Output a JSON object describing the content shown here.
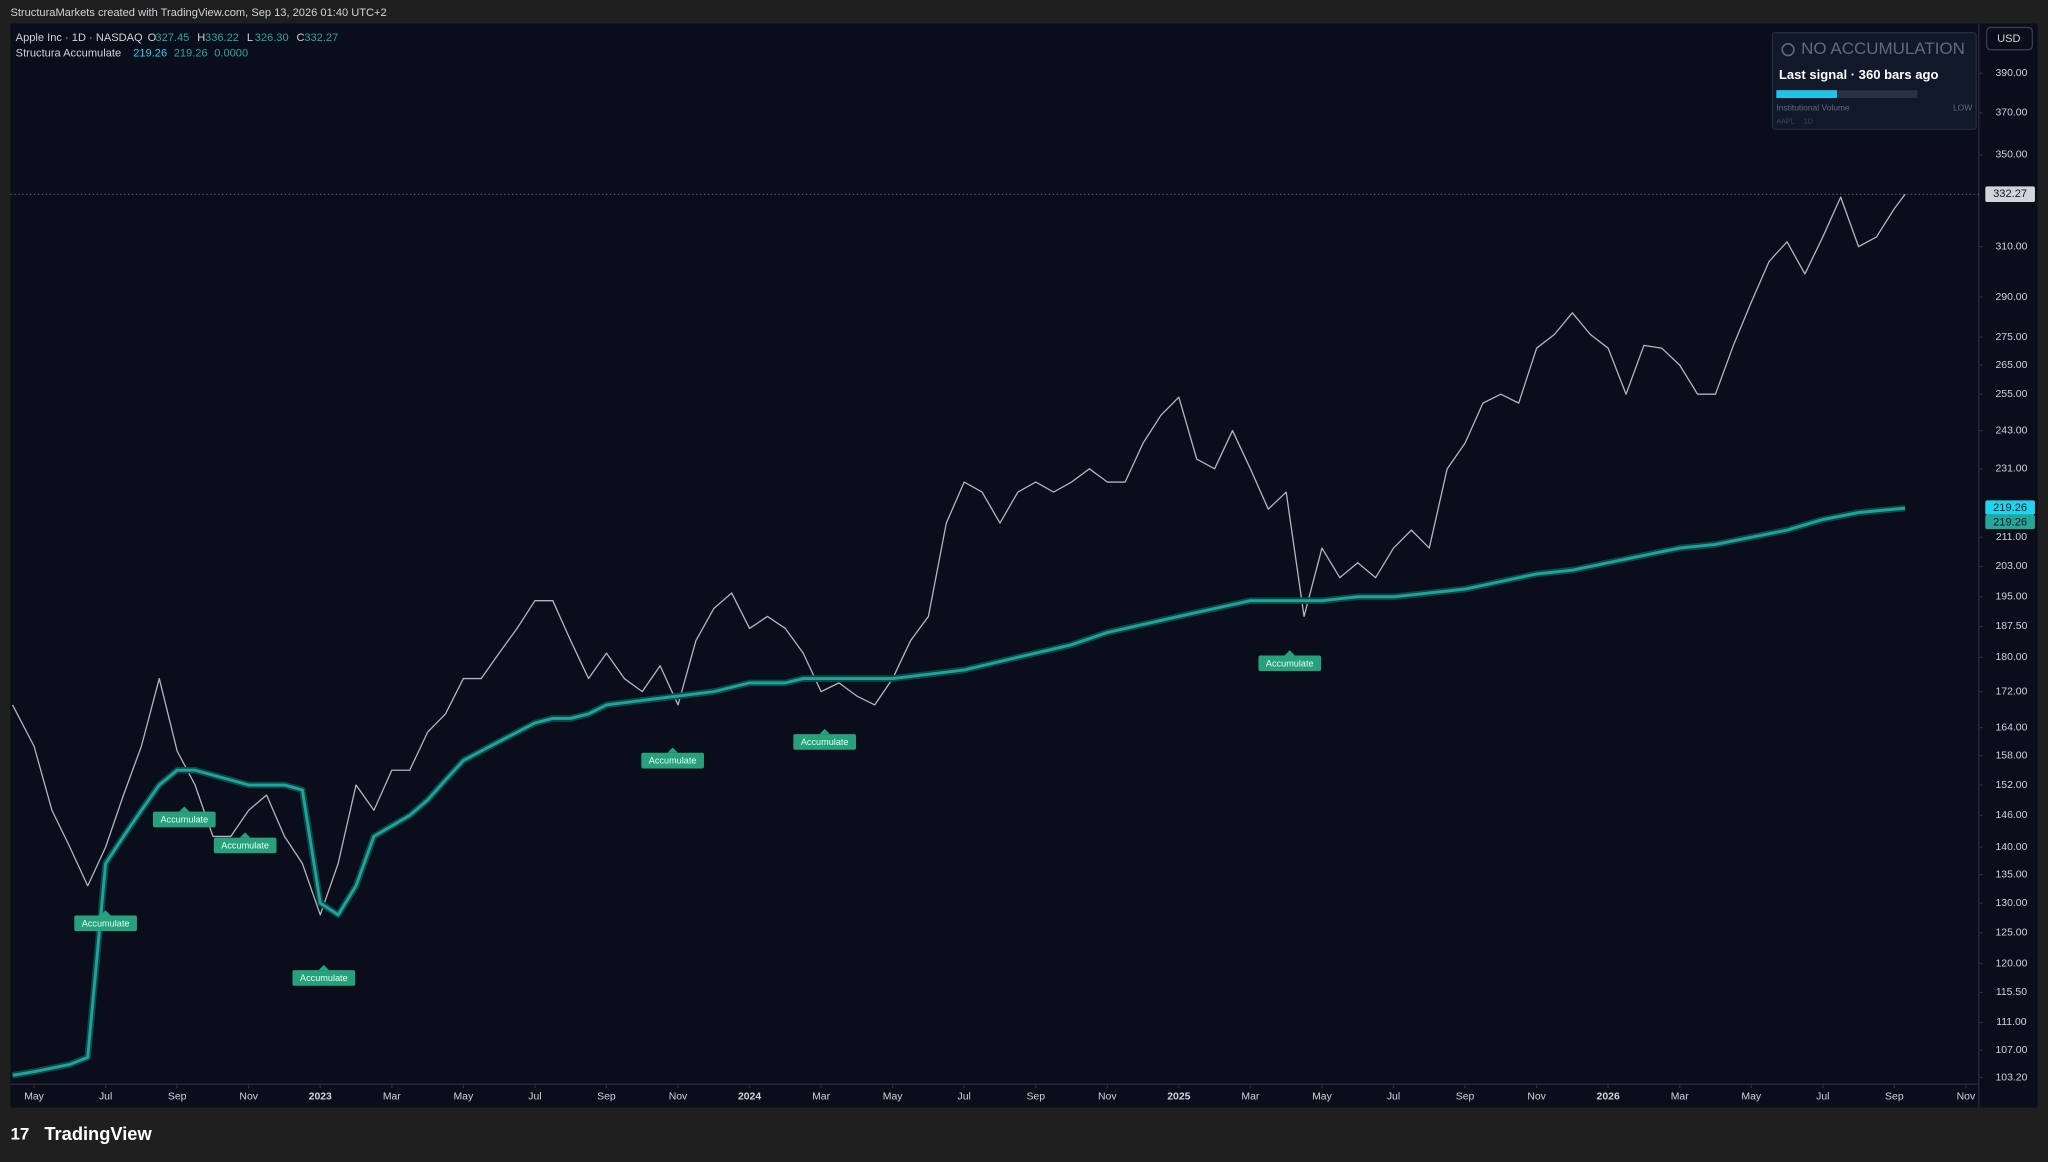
{
  "header": {
    "attribution": "StructuraMarkets created with TradingView.com, Sep 13, 2026 01:40 UTC+2",
    "logo": "TradingView",
    "currency": "USD"
  },
  "panel": {
    "status": "NO ACCUMULATION",
    "last_signal": "Last signal · 360 bars ago",
    "meter_label": "Institutional Volume",
    "meter_level": "LOW",
    "meter_fill": 0.43,
    "symbol": "AAPL",
    "interval": "1D"
  },
  "chart_data": {
    "type": "line",
    "log_scale": true,
    "grid": false,
    "legend_ohlc": [
      {
        "key": "O",
        "text": "327.45"
      },
      {
        "key": "H",
        "text": "336.22"
      },
      {
        "key": "L",
        "text": "326.30"
      },
      {
        "key": "C",
        "text": "332.27"
      }
    ],
    "indicator_values": [
      "219.26",
      "219.26",
      "0.0000"
    ],
    "x": [
      -0.6,
      0,
      0.5,
      1,
      1.5,
      2,
      2.5,
      3,
      3.5,
      4,
      4.5,
      5,
      5.5,
      6,
      6.5,
      7,
      7.5,
      8,
      8.5,
      9,
      9.5,
      10,
      10.5,
      11,
      11.5,
      12,
      12.5,
      13,
      13.5,
      14,
      14.5,
      15,
      15.5,
      16,
      16.5,
      17,
      17.5,
      18,
      18.5,
      19,
      19.5,
      20,
      20.5,
      21,
      21.5,
      22,
      22.5,
      23,
      23.5,
      24,
      24.5,
      25,
      25.5,
      26,
      26.5,
      27,
      27.5,
      28,
      28.5,
      29,
      29.5,
      30,
      30.5,
      31,
      31.5,
      32,
      32.5,
      33,
      33.5,
      34,
      34.5,
      35,
      35.5,
      36,
      36.5,
      37,
      37.5,
      38,
      38.5,
      39,
      39.5,
      40,
      40.5,
      41,
      41.5,
      42,
      42.5,
      43,
      43.5,
      44,
      44.5,
      45,
      45.5,
      46,
      46.5,
      47,
      47.5,
      48,
      48.5,
      49,
      49.5,
      50,
      50.5,
      51,
      51.5,
      52,
      52.3
    ],
    "series": [
      {
        "name": "Apple Inc · 1D · NASDAQ",
        "color": "#b2b5be",
        "values": [
          169,
          160,
          147,
          140,
          133,
          140,
          150,
          160,
          175,
          159,
          152,
          142,
          142,
          147,
          150,
          142,
          137,
          128,
          137,
          152,
          147,
          155,
          155,
          163,
          167,
          175,
          175,
          181,
          187,
          194,
          194,
          184,
          175,
          181,
          175,
          172,
          178,
          169,
          184,
          192,
          196,
          187,
          190,
          187,
          181,
          172,
          174,
          171,
          169,
          175,
          184,
          190,
          215,
          227,
          224,
          215,
          224,
          227,
          224,
          227,
          231,
          227,
          227,
          239,
          248,
          254,
          234,
          231,
          243,
          231,
          219,
          224,
          190,
          208,
          200,
          204,
          200,
          208,
          213,
          208,
          231,
          239,
          252,
          255,
          252,
          271,
          276,
          284,
          276,
          271,
          255,
          272,
          271,
          265,
          255,
          255,
          272,
          288,
          304,
          312,
          299,
          314,
          331,
          310,
          314,
          326,
          332.27
        ]
      },
      {
        "name": "Structura Accumulate",
        "color": "#1fa39a",
        "values": [
          103.5,
          104,
          104.5,
          105,
          106,
          137,
          142,
          147,
          152,
          155,
          155,
          154,
          153,
          152,
          152,
          152,
          151,
          130,
          128,
          133,
          142,
          144,
          146,
          149,
          153,
          157,
          159,
          161,
          163,
          165,
          166,
          166,
          167,
          169,
          169.5,
          170,
          170.5,
          171,
          171.5,
          172,
          173,
          174,
          174,
          174,
          175,
          175,
          175,
          175,
          175,
          175,
          175.5,
          176,
          176.5,
          177,
          178,
          179,
          180,
          181,
          182,
          183,
          184.5,
          186,
          187,
          188,
          189,
          190,
          191,
          192,
          193,
          194,
          194,
          194,
          194,
          194,
          194.5,
          195,
          195,
          195,
          195.5,
          196,
          196.5,
          197,
          198,
          199,
          200,
          201,
          201.5,
          202,
          203,
          204,
          205,
          206,
          207,
          208,
          208.5,
          209,
          210,
          211,
          212,
          213,
          214.5,
          216,
          217,
          218,
          218.5,
          219,
          219.26
        ]
      }
    ],
    "annotations": [
      {
        "text": "Accumulate",
        "x": 2,
        "y": 129
      },
      {
        "text": "Accumulate",
        "x": 4.2,
        "y": 148
      },
      {
        "text": "Accumulate",
        "x": 5.9,
        "y": 143
      },
      {
        "text": "Accumulate",
        "x": 8.1,
        "y": 120
      },
      {
        "text": "Accumulate",
        "x": 17.85,
        "y": 160
      },
      {
        "text": "Accumulate",
        "x": 22.1,
        "y": 164
      },
      {
        "text": "Accumulate",
        "x": 35.1,
        "y": 182
      }
    ],
    "last_price": {
      "value": 332.27,
      "color": "#d1d4dc"
    },
    "indicator_labels": [
      {
        "value": 219.26,
        "color": "#22d3ee"
      },
      {
        "value": 219.26,
        "color": "#26a69a"
      }
    ],
    "xlim": [
      -0.66,
      54.36
    ],
    "xticks": [
      {
        "value": 0,
        "label": "May"
      },
      {
        "value": 2,
        "label": "Jul"
      },
      {
        "value": 4,
        "label": "Sep"
      },
      {
        "value": 6,
        "label": "Nov"
      },
      {
        "value": 8,
        "label": "2023"
      },
      {
        "value": 10,
        "label": "Mar"
      },
      {
        "value": 12,
        "label": "May"
      },
      {
        "value": 14,
        "label": "Jul"
      },
      {
        "value": 16,
        "label": "Sep"
      },
      {
        "value": 18,
        "label": "Nov"
      },
      {
        "value": 20,
        "label": "2024"
      },
      {
        "value": 22,
        "label": "Mar"
      },
      {
        "value": 24,
        "label": "May"
      },
      {
        "value": 26,
        "label": "Jul"
      },
      {
        "value": 28,
        "label": "Sep"
      },
      {
        "value": 30,
        "label": "Nov"
      },
      {
        "value": 32,
        "label": "2025"
      },
      {
        "value": 34,
        "label": "Mar"
      },
      {
        "value": 36,
        "label": "May"
      },
      {
        "value": 38,
        "label": "Jul"
      },
      {
        "value": 40,
        "label": "Sep"
      },
      {
        "value": 42,
        "label": "Nov"
      },
      {
        "value": 44,
        "label": "2026"
      },
      {
        "value": 46,
        "label": "Mar"
      },
      {
        "value": 48,
        "label": "May"
      },
      {
        "value": 50,
        "label": "Jul"
      },
      {
        "value": 52,
        "label": "Sep"
      },
      {
        "value": 54,
        "label": "Nov"
      }
    ],
    "ylim": [
      102.3,
      416.5
    ],
    "yticks": [
      {
        "value": 103.2,
        "label": "103.20"
      },
      {
        "value": 107,
        "label": "107.00"
      },
      {
        "value": 111,
        "label": "111.00"
      },
      {
        "value": 115.5,
        "label": "115.50"
      },
      {
        "value": 120,
        "label": "120.00"
      },
      {
        "value": 125,
        "label": "125.00"
      },
      {
        "value": 130,
        "label": "130.00"
      },
      {
        "value": 135,
        "label": "135.00"
      },
      {
        "value": 140,
        "label": "140.00"
      },
      {
        "value": 146,
        "label": "146.00"
      },
      {
        "value": 152,
        "label": "152.00"
      },
      {
        "value": 158,
        "label": "158.00"
      },
      {
        "value": 164,
        "label": "164.00"
      },
      {
        "value": 172,
        "label": "172.00"
      },
      {
        "value": 180,
        "label": "180.00"
      },
      {
        "value": 187.5,
        "label": "187.50"
      },
      {
        "value": 195,
        "label": "195.00"
      },
      {
        "value": 203,
        "label": "203.00"
      },
      {
        "value": 211,
        "label": "211.00"
      },
      {
        "value": 231,
        "label": "231.00"
      },
      {
        "value": 243,
        "label": "243.00"
      },
      {
        "value": 255,
        "label": "255.00"
      },
      {
        "value": 265,
        "label": "265.00"
      },
      {
        "value": 275,
        "label": "275.00"
      },
      {
        "value": 290,
        "label": "290.00"
      },
      {
        "value": 310,
        "label": "310.00"
      },
      {
        "value": 350,
        "label": "350.00"
      },
      {
        "value": 370,
        "label": "370.00"
      },
      {
        "value": 390,
        "label": "390.00"
      }
    ]
  }
}
